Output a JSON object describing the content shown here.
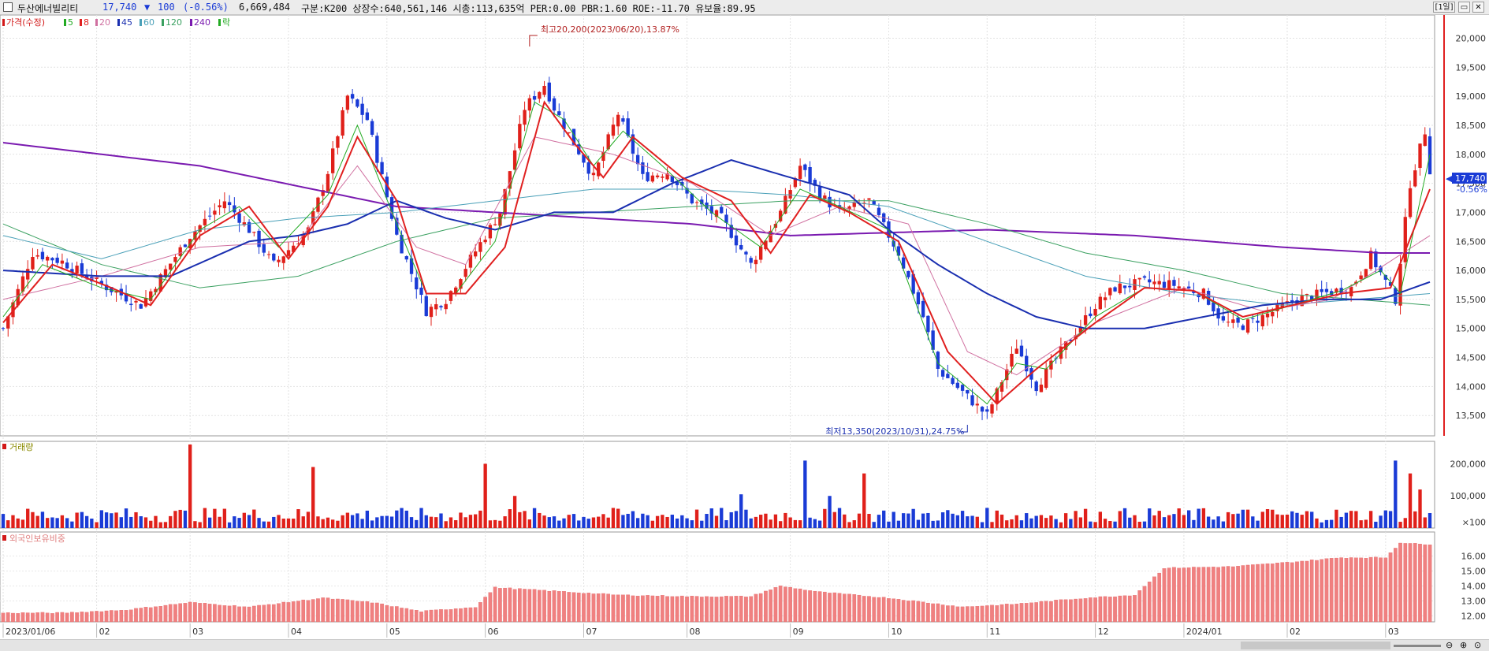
{
  "header": {
    "name": "두산에너빌리티",
    "price": "17,740",
    "change_arrow": "▼",
    "change": "100",
    "change_pct": "(-0.56%)",
    "volume": "6,669,484",
    "info": "구분:K200  상장수:640,561,146  시총:113,635억  PER:0.00  PBR:1.60  ROE:-11.70  유보율:89.95",
    "period": "1일",
    "colors": {
      "down": "#1a3bd6",
      "up": "#e0201a"
    }
  },
  "legend": {
    "items": [
      {
        "label": "가격(수정)",
        "color": "#d21818"
      },
      {
        "label": "5",
        "color": "#22aa22"
      },
      {
        "label": "8",
        "color": "#e02020"
      },
      {
        "label": "20",
        "color": "#d070a0"
      },
      {
        "label": "45",
        "color": "#1a2fb0"
      },
      {
        "label": "60",
        "color": "#4aa0b8"
      },
      {
        "label": "120",
        "color": "#3aa060"
      },
      {
        "label": "240",
        "color": "#7a1ab0"
      },
      {
        "label": "락",
        "color": "#22aa22"
      }
    ]
  },
  "annotations": {
    "high": "최고20,200(2023/06/20),13.87%",
    "low": "최저13,350(2023/10/31),24.75%"
  },
  "panels": {
    "volume_title": "거래량",
    "foreign_title": "외국인보유비중"
  },
  "price_tag": {
    "value": "17,740",
    "pct": "-0.56%"
  },
  "chart_data": [
    {
      "type": "candlestick",
      "title": "가격(수정)",
      "ylim": [
        13150,
        20400
      ],
      "yticks": [
        "13,500",
        "14,000",
        "14,500",
        "15,000",
        "15,500",
        "16,000",
        "16,500",
        "17,000",
        "17,500",
        "18,000",
        "18,500",
        "19,000",
        "19,500",
        "20,000"
      ],
      "ytick_values": [
        13500,
        14000,
        14500,
        15000,
        15500,
        16000,
        16500,
        17000,
        17500,
        18000,
        18500,
        19000,
        19500,
        20000
      ],
      "xticks": [
        "2023/01/06",
        "02",
        "03",
        "04",
        "05",
        "06",
        "07",
        "08",
        "09",
        "10",
        "11",
        "12",
        "2024/01",
        "02",
        "03"
      ],
      "xtick_index": [
        0,
        19,
        38,
        58,
        78,
        98,
        118,
        139,
        160,
        180,
        200,
        222,
        240,
        261,
        281
      ],
      "n_candles": 291,
      "close_keypoints": [
        [
          0,
          15000
        ],
        [
          6,
          16300
        ],
        [
          12,
          16150
        ],
        [
          19,
          15800
        ],
        [
          28,
          15400
        ],
        [
          38,
          16600
        ],
        [
          45,
          17200
        ],
        [
          50,
          16700
        ],
        [
          55,
          16100
        ],
        [
          62,
          16700
        ],
        [
          66,
          17700
        ],
        [
          70,
          19000
        ],
        [
          74,
          18600
        ],
        [
          80,
          16600
        ],
        [
          86,
          15300
        ],
        [
          90,
          15500
        ],
        [
          95,
          16200
        ],
        [
          101,
          17000
        ],
        [
          106,
          18800
        ],
        [
          110,
          19200
        ],
        [
          112,
          18800
        ],
        [
          116,
          18200
        ],
        [
          120,
          17600
        ],
        [
          125,
          18700
        ],
        [
          130,
          17600
        ],
        [
          135,
          17700
        ],
        [
          140,
          17200
        ],
        [
          146,
          16900
        ],
        [
          152,
          16100
        ],
        [
          158,
          17000
        ],
        [
          162,
          17800
        ],
        [
          166,
          17300
        ],
        [
          170,
          17000
        ],
        [
          176,
          17200
        ],
        [
          182,
          16300
        ],
        [
          187,
          15200
        ],
        [
          190,
          14300
        ],
        [
          195,
          13900
        ],
        [
          200,
          13500
        ],
        [
          203,
          14100
        ],
        [
          206,
          14700
        ],
        [
          210,
          14000
        ],
        [
          215,
          14600
        ],
        [
          222,
          15400
        ],
        [
          226,
          15700
        ],
        [
          232,
          15800
        ],
        [
          238,
          15750
        ],
        [
          244,
          15600
        ],
        [
          248,
          15100
        ],
        [
          252,
          15050
        ],
        [
          256,
          15200
        ],
        [
          263,
          15500
        ],
        [
          268,
          15600
        ],
        [
          274,
          15700
        ],
        [
          278,
          16250
        ],
        [
          283,
          15500
        ],
        [
          286,
          17500
        ],
        [
          289,
          18400
        ],
        [
          290,
          17740
        ]
      ],
      "ma_5_keypoints": [
        [
          0,
          15200
        ],
        [
          8,
          16100
        ],
        [
          20,
          15700
        ],
        [
          30,
          15500
        ],
        [
          40,
          16700
        ],
        [
          48,
          17100
        ],
        [
          56,
          16400
        ],
        [
          66,
          17300
        ],
        [
          72,
          18500
        ],
        [
          80,
          16800
        ],
        [
          86,
          15600
        ],
        [
          92,
          15600
        ],
        [
          100,
          16500
        ],
        [
          108,
          18900
        ],
        [
          114,
          18600
        ],
        [
          120,
          17800
        ],
        [
          126,
          18400
        ],
        [
          134,
          17800
        ],
        [
          144,
          17000
        ],
        [
          154,
          16400
        ],
        [
          162,
          17400
        ],
        [
          170,
          17100
        ],
        [
          180,
          16700
        ],
        [
          190,
          14400
        ],
        [
          200,
          13700
        ],
        [
          206,
          14400
        ],
        [
          212,
          14300
        ],
        [
          222,
          15200
        ],
        [
          232,
          15700
        ],
        [
          242,
          15650
        ],
        [
          252,
          15150
        ],
        [
          262,
          15400
        ],
        [
          272,
          15650
        ],
        [
          280,
          16000
        ],
        [
          284,
          15600
        ],
        [
          290,
          18000
        ]
      ],
      "ma_8_keypoints": [
        [
          0,
          15100
        ],
        [
          10,
          16100
        ],
        [
          22,
          15700
        ],
        [
          30,
          15400
        ],
        [
          40,
          16600
        ],
        [
          50,
          17100
        ],
        [
          58,
          16200
        ],
        [
          66,
          17100
        ],
        [
          72,
          18300
        ],
        [
          80,
          17200
        ],
        [
          86,
          15600
        ],
        [
          94,
          15600
        ],
        [
          102,
          16400
        ],
        [
          110,
          18900
        ],
        [
          116,
          18200
        ],
        [
          122,
          17600
        ],
        [
          128,
          18300
        ],
        [
          138,
          17600
        ],
        [
          148,
          17200
        ],
        [
          156,
          16300
        ],
        [
          164,
          17300
        ],
        [
          172,
          17000
        ],
        [
          182,
          16500
        ],
        [
          192,
          14600
        ],
        [
          202,
          13700
        ],
        [
          210,
          14300
        ],
        [
          222,
          15100
        ],
        [
          232,
          15700
        ],
        [
          242,
          15650
        ],
        [
          252,
          15200
        ],
        [
          262,
          15400
        ],
        [
          272,
          15600
        ],
        [
          282,
          15700
        ],
        [
          290,
          17400
        ]
      ],
      "ma_20_keypoints": [
        [
          0,
          15500
        ],
        [
          20,
          15900
        ],
        [
          40,
          16400
        ],
        [
          60,
          16500
        ],
        [
          72,
          17800
        ],
        [
          84,
          16400
        ],
        [
          94,
          16100
        ],
        [
          108,
          18300
        ],
        [
          124,
          18000
        ],
        [
          140,
          17500
        ],
        [
          156,
          16600
        ],
        [
          170,
          17100
        ],
        [
          184,
          16800
        ],
        [
          196,
          14600
        ],
        [
          206,
          14200
        ],
        [
          222,
          15100
        ],
        [
          240,
          15700
        ],
        [
          256,
          15300
        ],
        [
          270,
          15500
        ],
        [
          290,
          16600
        ]
      ],
      "ma_45_keypoints": [
        [
          0,
          16000
        ],
        [
          20,
          15900
        ],
        [
          34,
          15900
        ],
        [
          50,
          16500
        ],
        [
          60,
          16600
        ],
        [
          70,
          16800
        ],
        [
          80,
          17200
        ],
        [
          90,
          16900
        ],
        [
          100,
          16700
        ],
        [
          112,
          17000
        ],
        [
          124,
          17000
        ],
        [
          136,
          17500
        ],
        [
          148,
          17900
        ],
        [
          160,
          17600
        ],
        [
          172,
          17300
        ],
        [
          180,
          16700
        ],
        [
          190,
          16100
        ],
        [
          200,
          15600
        ],
        [
          210,
          15200
        ],
        [
          220,
          15000
        ],
        [
          232,
          15000
        ],
        [
          244,
          15200
        ],
        [
          256,
          15400
        ],
        [
          268,
          15500
        ],
        [
          280,
          15500
        ],
        [
          290,
          15800
        ]
      ],
      "ma_60_keypoints": [
        [
          0,
          16600
        ],
        [
          20,
          16200
        ],
        [
          40,
          16700
        ],
        [
          60,
          16900
        ],
        [
          80,
          17000
        ],
        [
          100,
          17200
        ],
        [
          120,
          17400
        ],
        [
          140,
          17400
        ],
        [
          160,
          17300
        ],
        [
          180,
          17100
        ],
        [
          200,
          16500
        ],
        [
          220,
          15900
        ],
        [
          240,
          15600
        ],
        [
          260,
          15400
        ],
        [
          290,
          15600
        ]
      ],
      "ma_120_keypoints": [
        [
          0,
          16800
        ],
        [
          20,
          16100
        ],
        [
          40,
          15700
        ],
        [
          60,
          15900
        ],
        [
          80,
          16500
        ],
        [
          100,
          16900
        ],
        [
          120,
          17000
        ],
        [
          140,
          17100
        ],
        [
          160,
          17200
        ],
        [
          180,
          17200
        ],
        [
          200,
          16800
        ],
        [
          220,
          16300
        ],
        [
          240,
          16000
        ],
        [
          260,
          15600
        ],
        [
          290,
          15400
        ]
      ],
      "ma_240_keypoints": [
        [
          0,
          18200
        ],
        [
          40,
          17800
        ],
        [
          80,
          17100
        ],
        [
          100,
          17000
        ],
        [
          140,
          16800
        ],
        [
          160,
          16600
        ],
        [
          200,
          16700
        ],
        [
          230,
          16600
        ],
        [
          260,
          16400
        ],
        [
          280,
          16300
        ],
        [
          290,
          16300
        ]
      ]
    },
    {
      "type": "bar",
      "title": "거래량",
      "ylim": [
        0,
        260000
      ],
      "yticks": [
        "200,000",
        "100,000",
        "×100"
      ],
      "ytick_values": [
        200000,
        100000,
        18000
      ],
      "spikes": [
        [
          38,
          260000
        ],
        [
          63,
          190000
        ],
        [
          98,
          200000
        ],
        [
          104,
          100000
        ],
        [
          150,
          105000
        ],
        [
          163,
          210000
        ],
        [
          168,
          100000
        ],
        [
          175,
          170000
        ],
        [
          230,
          40000
        ],
        [
          283,
          210000
        ],
        [
          286,
          170000
        ],
        [
          288,
          120000
        ]
      ],
      "base": 35000
    },
    {
      "type": "bar",
      "title": "외국인보유비중",
      "ylim": [
        11.6,
        17.4
      ],
      "yticks": [
        "16.00",
        "15.00",
        "14.00",
        "13.00",
        "12.00"
      ],
      "ytick_values": [
        16,
        15,
        14,
        13,
        12
      ],
      "keypoints": [
        [
          0,
          12.2
        ],
        [
          12,
          12.2
        ],
        [
          25,
          12.4
        ],
        [
          38,
          12.9
        ],
        [
          50,
          12.6
        ],
        [
          65,
          13.2
        ],
        [
          75,
          12.9
        ],
        [
          85,
          12.3
        ],
        [
          96,
          12.6
        ],
        [
          100,
          13.9
        ],
        [
          110,
          13.7
        ],
        [
          125,
          13.4
        ],
        [
          140,
          13.3
        ],
        [
          152,
          13.3
        ],
        [
          158,
          14.0
        ],
        [
          166,
          13.6
        ],
        [
          180,
          13.2
        ],
        [
          195,
          12.6
        ],
        [
          206,
          12.8
        ],
        [
          220,
          13.2
        ],
        [
          230,
          13.4
        ],
        [
          236,
          15.2
        ],
        [
          250,
          15.3
        ],
        [
          262,
          15.6
        ],
        [
          272,
          15.9
        ],
        [
          281,
          15.9
        ],
        [
          284,
          16.9
        ],
        [
          288,
          16.8
        ]
      ]
    }
  ]
}
